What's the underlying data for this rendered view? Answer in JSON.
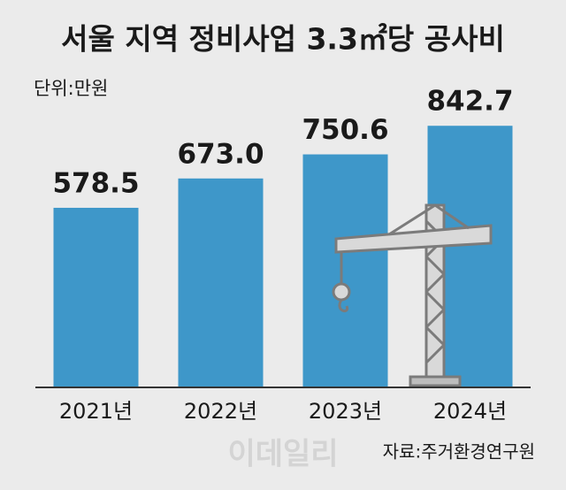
{
  "chart_data": {
    "type": "bar",
    "title": "서울 지역 정비사업 3.3㎡당 공사비",
    "unit": "단위:만원",
    "categories": [
      "2021년",
      "2022년",
      "2023년",
      "2024년"
    ],
    "values": [
      578.5,
      673.0,
      750.6,
      842.7
    ],
    "value_labels": [
      "578.5",
      "673.0",
      "750.6",
      "842.7"
    ],
    "color": "#3e97c9",
    "source": "자료:주거환경연구원",
    "watermark": "이데일리"
  }
}
